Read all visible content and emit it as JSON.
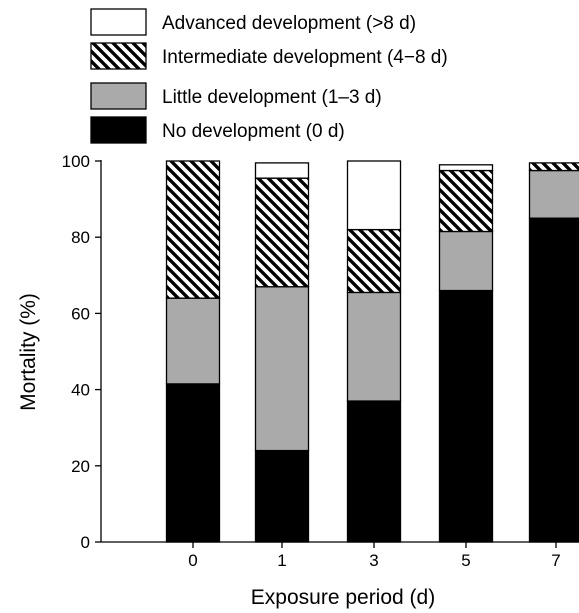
{
  "chart_data": {
    "type": "bar",
    "stacked": true,
    "xlabel": "Exposure period (d)",
    "ylabel": "Mortality (%)",
    "ylim": [
      0,
      100
    ],
    "yticks": [
      0,
      20,
      40,
      60,
      80,
      100
    ],
    "categories": [
      "0",
      "1",
      "3",
      "5",
      "7"
    ],
    "legend_position": "top",
    "grid": false,
    "series": [
      {
        "name": "No development (0 d)",
        "fill": "solid",
        "color": "#000000",
        "values": [
          41.5,
          24,
          37,
          66,
          85
        ]
      },
      {
        "name": "Little development (1–3 d)",
        "fill": "solid",
        "color": "#aaaaaa",
        "values": [
          22.5,
          43,
          28.5,
          15.5,
          12.5
        ]
      },
      {
        "name": "Intermediate development (4−8 d)",
        "fill": "hatched",
        "color": "#000000",
        "values": [
          36,
          28.5,
          16.5,
          16,
          2
        ]
      },
      {
        "name": "Advanced development (>8 d)",
        "fill": "empty",
        "color": "#ffffff",
        "values": [
          0,
          4,
          18,
          1.5,
          0
        ]
      }
    ]
  }
}
